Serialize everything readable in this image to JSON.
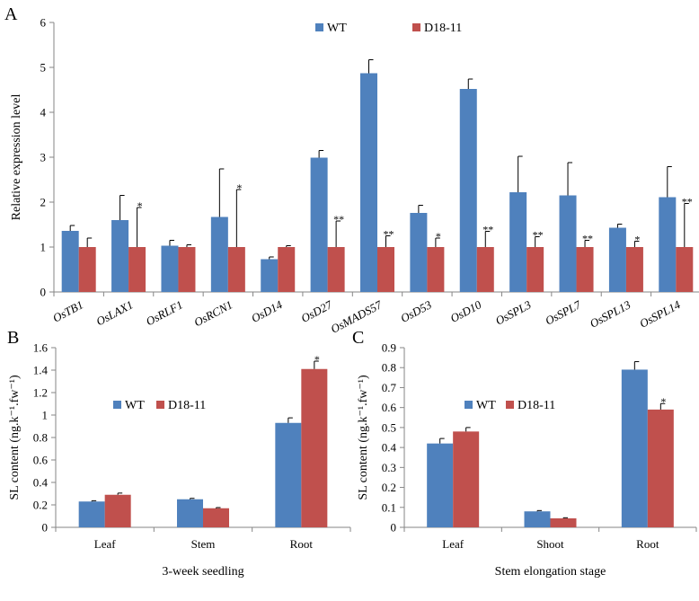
{
  "colors": {
    "wt": "#4F81BD",
    "d18": "#C0504D",
    "axis": "#868686",
    "error": "#000000"
  },
  "chart_data": [
    {
      "panel": "A",
      "type": "bar",
      "ylabel": "Relative expression level",
      "ylim": [
        0,
        6
      ],
      "yticks": [
        "0",
        "1",
        "2",
        "3",
        "4",
        "5",
        "6"
      ],
      "grid": false,
      "legend_position": "top-center",
      "categories": [
        "OsTB1",
        "OsLAX1",
        "OsRLF1",
        "OsRCN1",
        "OsD14",
        "OsD27",
        "OsMADS57",
        "OsD53",
        "OsD10",
        "OsSPL3",
        "OsSPL7",
        "OsSPL13",
        "OsSPL14"
      ],
      "series": [
        {
          "name": "WT",
          "values": [
            1.36,
            1.6,
            1.03,
            1.67,
            0.73,
            2.99,
            4.87,
            1.76,
            4.52,
            2.22,
            2.15,
            1.43,
            2.11
          ],
          "errors": [
            0.12,
            0.55,
            0.12,
            1.07,
            0.05,
            0.16,
            0.3,
            0.17,
            0.22,
            0.8,
            0.73,
            0.08,
            0.68
          ]
        },
        {
          "name": "D18-11",
          "values": [
            1,
            1,
            1,
            1,
            1,
            1,
            1,
            1,
            1,
            1,
            1,
            1,
            1
          ],
          "errors": [
            0.2,
            0.88,
            0.05,
            1.28,
            0.03,
            0.58,
            0.25,
            0.2,
            0.35,
            0.23,
            0.15,
            0.13,
            0.97
          ]
        }
      ],
      "annotations": [
        "",
        "*",
        "",
        "*",
        "",
        "**",
        "**",
        "*",
        "**",
        "**",
        "**",
        "*",
        "**"
      ]
    },
    {
      "panel": "B",
      "type": "bar",
      "ylabel": "SL content (ng.k⁻¹.fw⁻¹)",
      "xlabel": "3-week seedling",
      "ylim": [
        0,
        1.6
      ],
      "yticks": [
        "0",
        "0.2",
        "0.4",
        "0.6",
        "0.8",
        "1",
        "1.2",
        "1.4",
        "1.6"
      ],
      "grid": false,
      "legend_position": "top-left",
      "categories": [
        "Leaf",
        "Stem",
        "Root"
      ],
      "series": [
        {
          "name": "WT",
          "values": [
            0.23,
            0.25,
            0.93
          ],
          "errors": [
            0.007,
            0.008,
            0.045
          ]
        },
        {
          "name": "D18-11",
          "values": [
            0.29,
            0.17,
            1.41
          ],
          "errors": [
            0.015,
            0.006,
            0.07
          ]
        }
      ],
      "annotations": [
        "",
        "",
        "*"
      ]
    },
    {
      "panel": "C",
      "type": "bar",
      "ylabel": "SL content (ng.k⁻¹.fw⁻¹)",
      "xlabel": "Stem elongation stage",
      "ylim": [
        0,
        0.9
      ],
      "yticks": [
        "0",
        "0.1",
        "0.2",
        "0.3",
        "0.4",
        "0.5",
        "0.6",
        "0.7",
        "0.8",
        "0.9"
      ],
      "grid": false,
      "legend_position": "top-left",
      "categories": [
        "Leaf",
        "Shoot",
        "Root"
      ],
      "series": [
        {
          "name": "WT",
          "values": [
            0.42,
            0.08,
            0.79
          ],
          "errors": [
            0.025,
            0.004,
            0.04
          ]
        },
        {
          "name": "D18-11",
          "values": [
            0.48,
            0.045,
            0.59
          ],
          "errors": [
            0.02,
            0.003,
            0.03
          ]
        }
      ],
      "annotations": [
        "",
        "",
        "*"
      ]
    }
  ]
}
